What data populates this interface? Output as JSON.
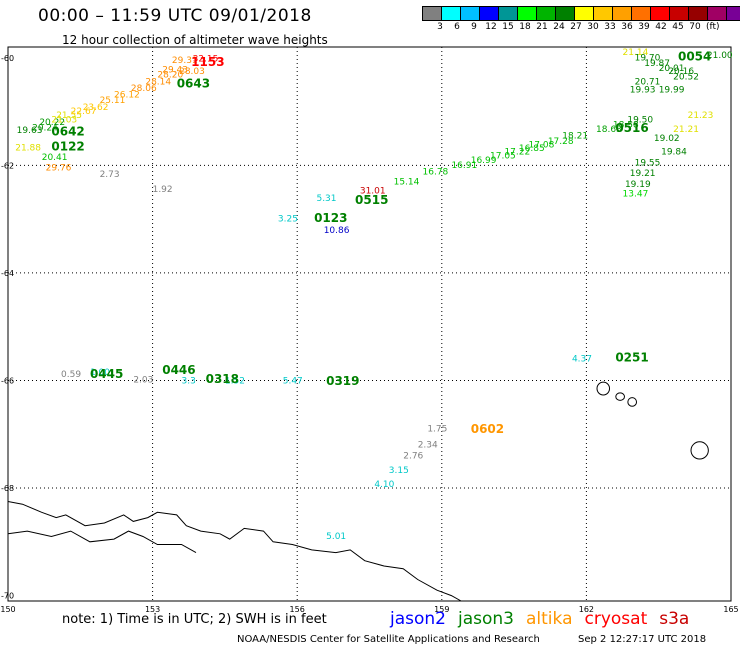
{
  "header": {
    "title": "00:00 – 11:59 UTC 09/01/2018",
    "subtitle": "12 hour collection of altimeter wave heights"
  },
  "colorbar": {
    "unit": "(ft)",
    "colors": [
      "#808080",
      "#00ffff",
      "#00c0ff",
      "#0000ff",
      "#009696",
      "#00ff00",
      "#00b400",
      "#008000",
      "#ffff00",
      "#ffc800",
      "#ffa000",
      "#ff7000",
      "#ff0000",
      "#c80000",
      "#960000",
      "#a00064",
      "#780096",
      "#000000"
    ],
    "labels": [
      "3",
      "6",
      "9",
      "12",
      "15",
      "18",
      "21",
      "24",
      "27",
      "30",
      "33",
      "36",
      "39",
      "42",
      "45",
      "70"
    ]
  },
  "axes": {
    "lon_labels": [
      "150",
      "153",
      "156",
      "159",
      "162",
      "165"
    ],
    "lat_labels": [
      "-60",
      "-62",
      "-64",
      "-66",
      "-68",
      "-70"
    ]
  },
  "observations": [
    {
      "text": "19.63",
      "c": "#008000",
      "lon": 150.18,
      "lat": -61.4
    },
    {
      "text": "20.24",
      "c": "#009600",
      "lon": 150.5,
      "lat": -61.35
    },
    {
      "text": "20.22",
      "c": "#009600",
      "lon": 150.65,
      "lat": -61.25
    },
    {
      "text": "21.03",
      "c": "#e0e000",
      "lon": 150.9,
      "lat": -61.2
    },
    {
      "text": "21.55",
      "c": "#e0e000",
      "lon": 151.0,
      "lat": -61.12
    },
    {
      "text": "22.67",
      "c": "#ffc800",
      "lon": 151.3,
      "lat": -61.05
    },
    {
      "text": "23.62",
      "c": "#ffc800",
      "lon": 151.55,
      "lat": -60.97
    },
    {
      "text": "25.11",
      "c": "#ffa000",
      "lon": 151.9,
      "lat": -60.84
    },
    {
      "text": "26.12",
      "c": "#ffa000",
      "lon": 152.2,
      "lat": -60.74
    },
    {
      "text": "28.06",
      "c": "#ff8c00",
      "lon": 152.55,
      "lat": -60.62
    },
    {
      "text": "28.14",
      "c": "#ff8c00",
      "lon": 152.85,
      "lat": -60.5
    },
    {
      "text": "28.20",
      "c": "#ff8c00",
      "lon": 153.1,
      "lat": -60.37
    },
    {
      "text": "29.43",
      "c": "#ff8c00",
      "lon": 153.2,
      "lat": -60.27
    },
    {
      "text": "29.31",
      "c": "#ff8c00",
      "lon": 153.4,
      "lat": -60.1
    },
    {
      "text": "28.03",
      "c": "#ff8c00",
      "lon": 153.55,
      "lat": -60.3
    },
    {
      "text": "32.15",
      "c": "#ff0000",
      "lon": 153.83,
      "lat": -60.07
    },
    {
      "text": "21.88",
      "c": "#e0e000",
      "lon": 150.15,
      "lat": -61.72
    },
    {
      "text": "20.41",
      "c": "#00c000",
      "lon": 150.7,
      "lat": -61.9
    },
    {
      "text": "29.76",
      "c": "#ff8c00",
      "lon": 150.78,
      "lat": -62.1
    },
    {
      "text": "2.73",
      "c": "#808080",
      "lon": 151.9,
      "lat": -62.22
    },
    {
      "text": "1.92",
      "c": "#808080",
      "lon": 153.0,
      "lat": -62.5
    },
    {
      "text": "5.31",
      "c": "#00c8c8",
      "lon": 156.4,
      "lat": -62.66
    },
    {
      "text": "31.01",
      "c": "#c80000",
      "lon": 157.3,
      "lat": -62.52
    },
    {
      "text": "15.14",
      "c": "#00c000",
      "lon": 158.0,
      "lat": -62.36
    },
    {
      "text": "3.25",
      "c": "#00c8c8",
      "lon": 155.6,
      "lat": -63.04
    },
    {
      "text": "10.86",
      "c": "#0000c8",
      "lon": 156.55,
      "lat": -63.26
    },
    {
      "text": "16.78",
      "c": "#00c000",
      "lon": 158.6,
      "lat": -62.17
    },
    {
      "text": "16.91",
      "c": "#00c000",
      "lon": 159.2,
      "lat": -62.05
    },
    {
      "text": "16.99",
      "c": "#00c000",
      "lon": 159.6,
      "lat": -61.96
    },
    {
      "text": "17.05",
      "c": "#00c000",
      "lon": 160.0,
      "lat": -61.87
    },
    {
      "text": "17.22",
      "c": "#00c000",
      "lon": 160.3,
      "lat": -61.8
    },
    {
      "text": "16.85",
      "c": "#00c000",
      "lon": 160.6,
      "lat": -61.73
    },
    {
      "text": "17.08",
      "c": "#00c000",
      "lon": 160.8,
      "lat": -61.67
    },
    {
      "text": "17.28",
      "c": "#00c000",
      "lon": 161.2,
      "lat": -61.6
    },
    {
      "text": "18.21",
      "c": "#00a000",
      "lon": 161.5,
      "lat": -61.5
    },
    {
      "text": "18.63",
      "c": "#00a000",
      "lon": 162.2,
      "lat": -61.38
    },
    {
      "text": "18.58",
      "c": "#00a000",
      "lon": 162.55,
      "lat": -61.3
    },
    {
      "text": "19.50",
      "c": "#008000",
      "lon": 162.85,
      "lat": -61.2
    },
    {
      "text": "19.02",
      "c": "#008000",
      "lon": 163.4,
      "lat": -61.55
    },
    {
      "text": "19.84",
      "c": "#008000",
      "lon": 163.55,
      "lat": -61.8
    },
    {
      "text": "19.55",
      "c": "#008000",
      "lon": 163.0,
      "lat": -62.0
    },
    {
      "text": "19.21",
      "c": "#008000",
      "lon": 162.9,
      "lat": -62.2
    },
    {
      "text": "19.19",
      "c": "#008000",
      "lon": 162.8,
      "lat": -62.4
    },
    {
      "text": "13.47",
      "c": "#00d800",
      "lon": 162.75,
      "lat": -62.58
    },
    {
      "text": "21.21",
      "c": "#e0e000",
      "lon": 163.8,
      "lat": -61.38
    },
    {
      "text": "21.23",
      "c": "#e0e000",
      "lon": 164.1,
      "lat": -61.12
    },
    {
      "text": "21.14",
      "c": "#e0e000",
      "lon": 162.75,
      "lat": -59.95
    },
    {
      "text": "21.00",
      "c": "#008000",
      "lon": 164.5,
      "lat": -60.0
    },
    {
      "text": "19.70",
      "c": "#008000",
      "lon": 163.0,
      "lat": -60.05
    },
    {
      "text": "19.87",
      "c": "#008000",
      "lon": 163.2,
      "lat": -60.15
    },
    {
      "text": "20.01",
      "c": "#008000",
      "lon": 163.5,
      "lat": -60.25
    },
    {
      "text": "20.16",
      "c": "#008000",
      "lon": 163.7,
      "lat": -60.3
    },
    {
      "text": "20.52",
      "c": "#008000",
      "lon": 163.8,
      "lat": -60.4
    },
    {
      "text": "20.71",
      "c": "#008000",
      "lon": 163.0,
      "lat": -60.5
    },
    {
      "text": "19.93",
      "c": "#008000",
      "lon": 162.9,
      "lat": -60.65
    },
    {
      "text": "19.99",
      "c": "#008000",
      "lon": 163.5,
      "lat": -60.65
    },
    {
      "text": "0.59",
      "c": "#808080",
      "lon": 151.1,
      "lat": -65.94
    },
    {
      "text": "1.00",
      "c": "#00c8c8",
      "lon": 151.7,
      "lat": -65.9
    },
    {
      "text": "2.03",
      "c": "#808080",
      "lon": 152.6,
      "lat": -66.04
    },
    {
      "text": "3.3",
      "c": "#00c8c8",
      "lon": 153.6,
      "lat": -66.06
    },
    {
      "text": "1.52",
      "c": "#00c8c8",
      "lon": 154.5,
      "lat": -66.06
    },
    {
      "text": "5.47",
      "c": "#00c8c8",
      "lon": 155.7,
      "lat": -66.06
    },
    {
      "text": "4.37",
      "c": "#00c8c8",
      "lon": 161.7,
      "lat": -65.65
    },
    {
      "text": "1.75",
      "c": "#808080",
      "lon": 158.7,
      "lat": -66.95
    },
    {
      "text": "2.34",
      "c": "#808080",
      "lon": 158.5,
      "lat": -67.25
    },
    {
      "text": "2.76",
      "c": "#808080",
      "lon": 158.2,
      "lat": -67.45
    },
    {
      "text": "3.15",
      "c": "#00c8c8",
      "lon": 157.9,
      "lat": -67.72
    },
    {
      "text": "4.10",
      "c": "#00c8c8",
      "lon": 157.6,
      "lat": -67.98
    },
    {
      "text": "5.01",
      "c": "#00c8c8",
      "lon": 156.6,
      "lat": -68.95
    }
  ],
  "time_labels": [
    {
      "text": "1153",
      "c": "#ff0000",
      "lon": 153.8,
      "lat": -60.15
    },
    {
      "text": "0643",
      "c": "#008000",
      "lon": 153.5,
      "lat": -60.55
    },
    {
      "text": "0642",
      "c": "#008000",
      "lon": 150.9,
      "lat": -61.45
    },
    {
      "text": "0122",
      "c": "#008000",
      "lon": 150.9,
      "lat": -61.72
    },
    {
      "text": "0515",
      "c": "#008000",
      "lon": 157.2,
      "lat": -62.72
    },
    {
      "text": "0123",
      "c": "#008000",
      "lon": 156.35,
      "lat": -63.05
    },
    {
      "text": "0516",
      "c": "#008000",
      "lon": 162.6,
      "lat": -61.38
    },
    {
      "text": "0054",
      "c": "#008000",
      "lon": 163.9,
      "lat": -60.05
    },
    {
      "text": "0445",
      "c": "#008000",
      "lon": 151.7,
      "lat": -65.95
    },
    {
      "text": "0446",
      "c": "#008000",
      "lon": 153.2,
      "lat": -65.88
    },
    {
      "text": "0318",
      "c": "#008000",
      "lon": 154.1,
      "lat": -66.05
    },
    {
      "text": "0319",
      "c": "#008000",
      "lon": 156.6,
      "lat": -66.08
    },
    {
      "text": "0251",
      "c": "#008000",
      "lon": 162.6,
      "lat": -65.65
    },
    {
      "text": "0602",
      "c": "#ff9600",
      "lon": 159.6,
      "lat": -66.98
    }
  ],
  "footer": {
    "note": "note: 1) Time is in UTC; 2) SWH is in feet",
    "satellites": [
      {
        "name": "jason2",
        "color": "#0000ff"
      },
      {
        "name": "jason3",
        "color": "#008000"
      },
      {
        "name": "altika",
        "color": "#ff9600"
      },
      {
        "name": "cryosat",
        "color": "#ff0000"
      },
      {
        "name": "s3a",
        "color": "#c80000"
      }
    ],
    "credit": "NOAA/NESDIS Center for Satellite Applications and Research",
    "timestamp": "Sep  2 12:27:17 UTC 2018"
  }
}
